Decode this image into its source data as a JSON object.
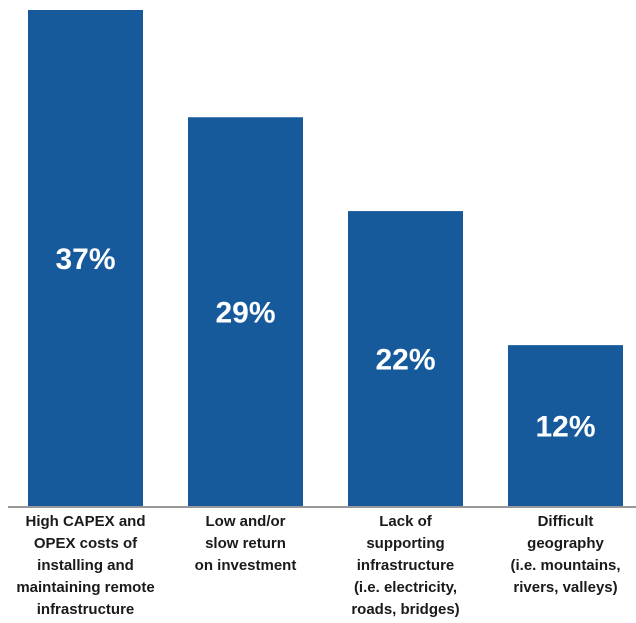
{
  "chart_data": {
    "type": "bar",
    "ylim": [
      0,
      37
    ],
    "grid": false,
    "bar_color": "#165a9c",
    "axis_color": "#999999",
    "categories": [
      [
        "High CAPEX and",
        "OPEX costs of",
        "installing and",
        "maintaining remote",
        "infrastructure"
      ],
      [
        "Low and/or",
        "slow return",
        "on investment"
      ],
      [
        "Lack of",
        "supporting",
        "infrastructure",
        "(i.e. electricity,",
        "roads, bridges)"
      ],
      [
        "Difficult",
        "geography",
        "(i.e. mountains,",
        "rivers, valleys)"
      ]
    ],
    "values": [
      37,
      29,
      22,
      12
    ],
    "value_labels": [
      "37%",
      "29%",
      "22%",
      "12%"
    ]
  }
}
